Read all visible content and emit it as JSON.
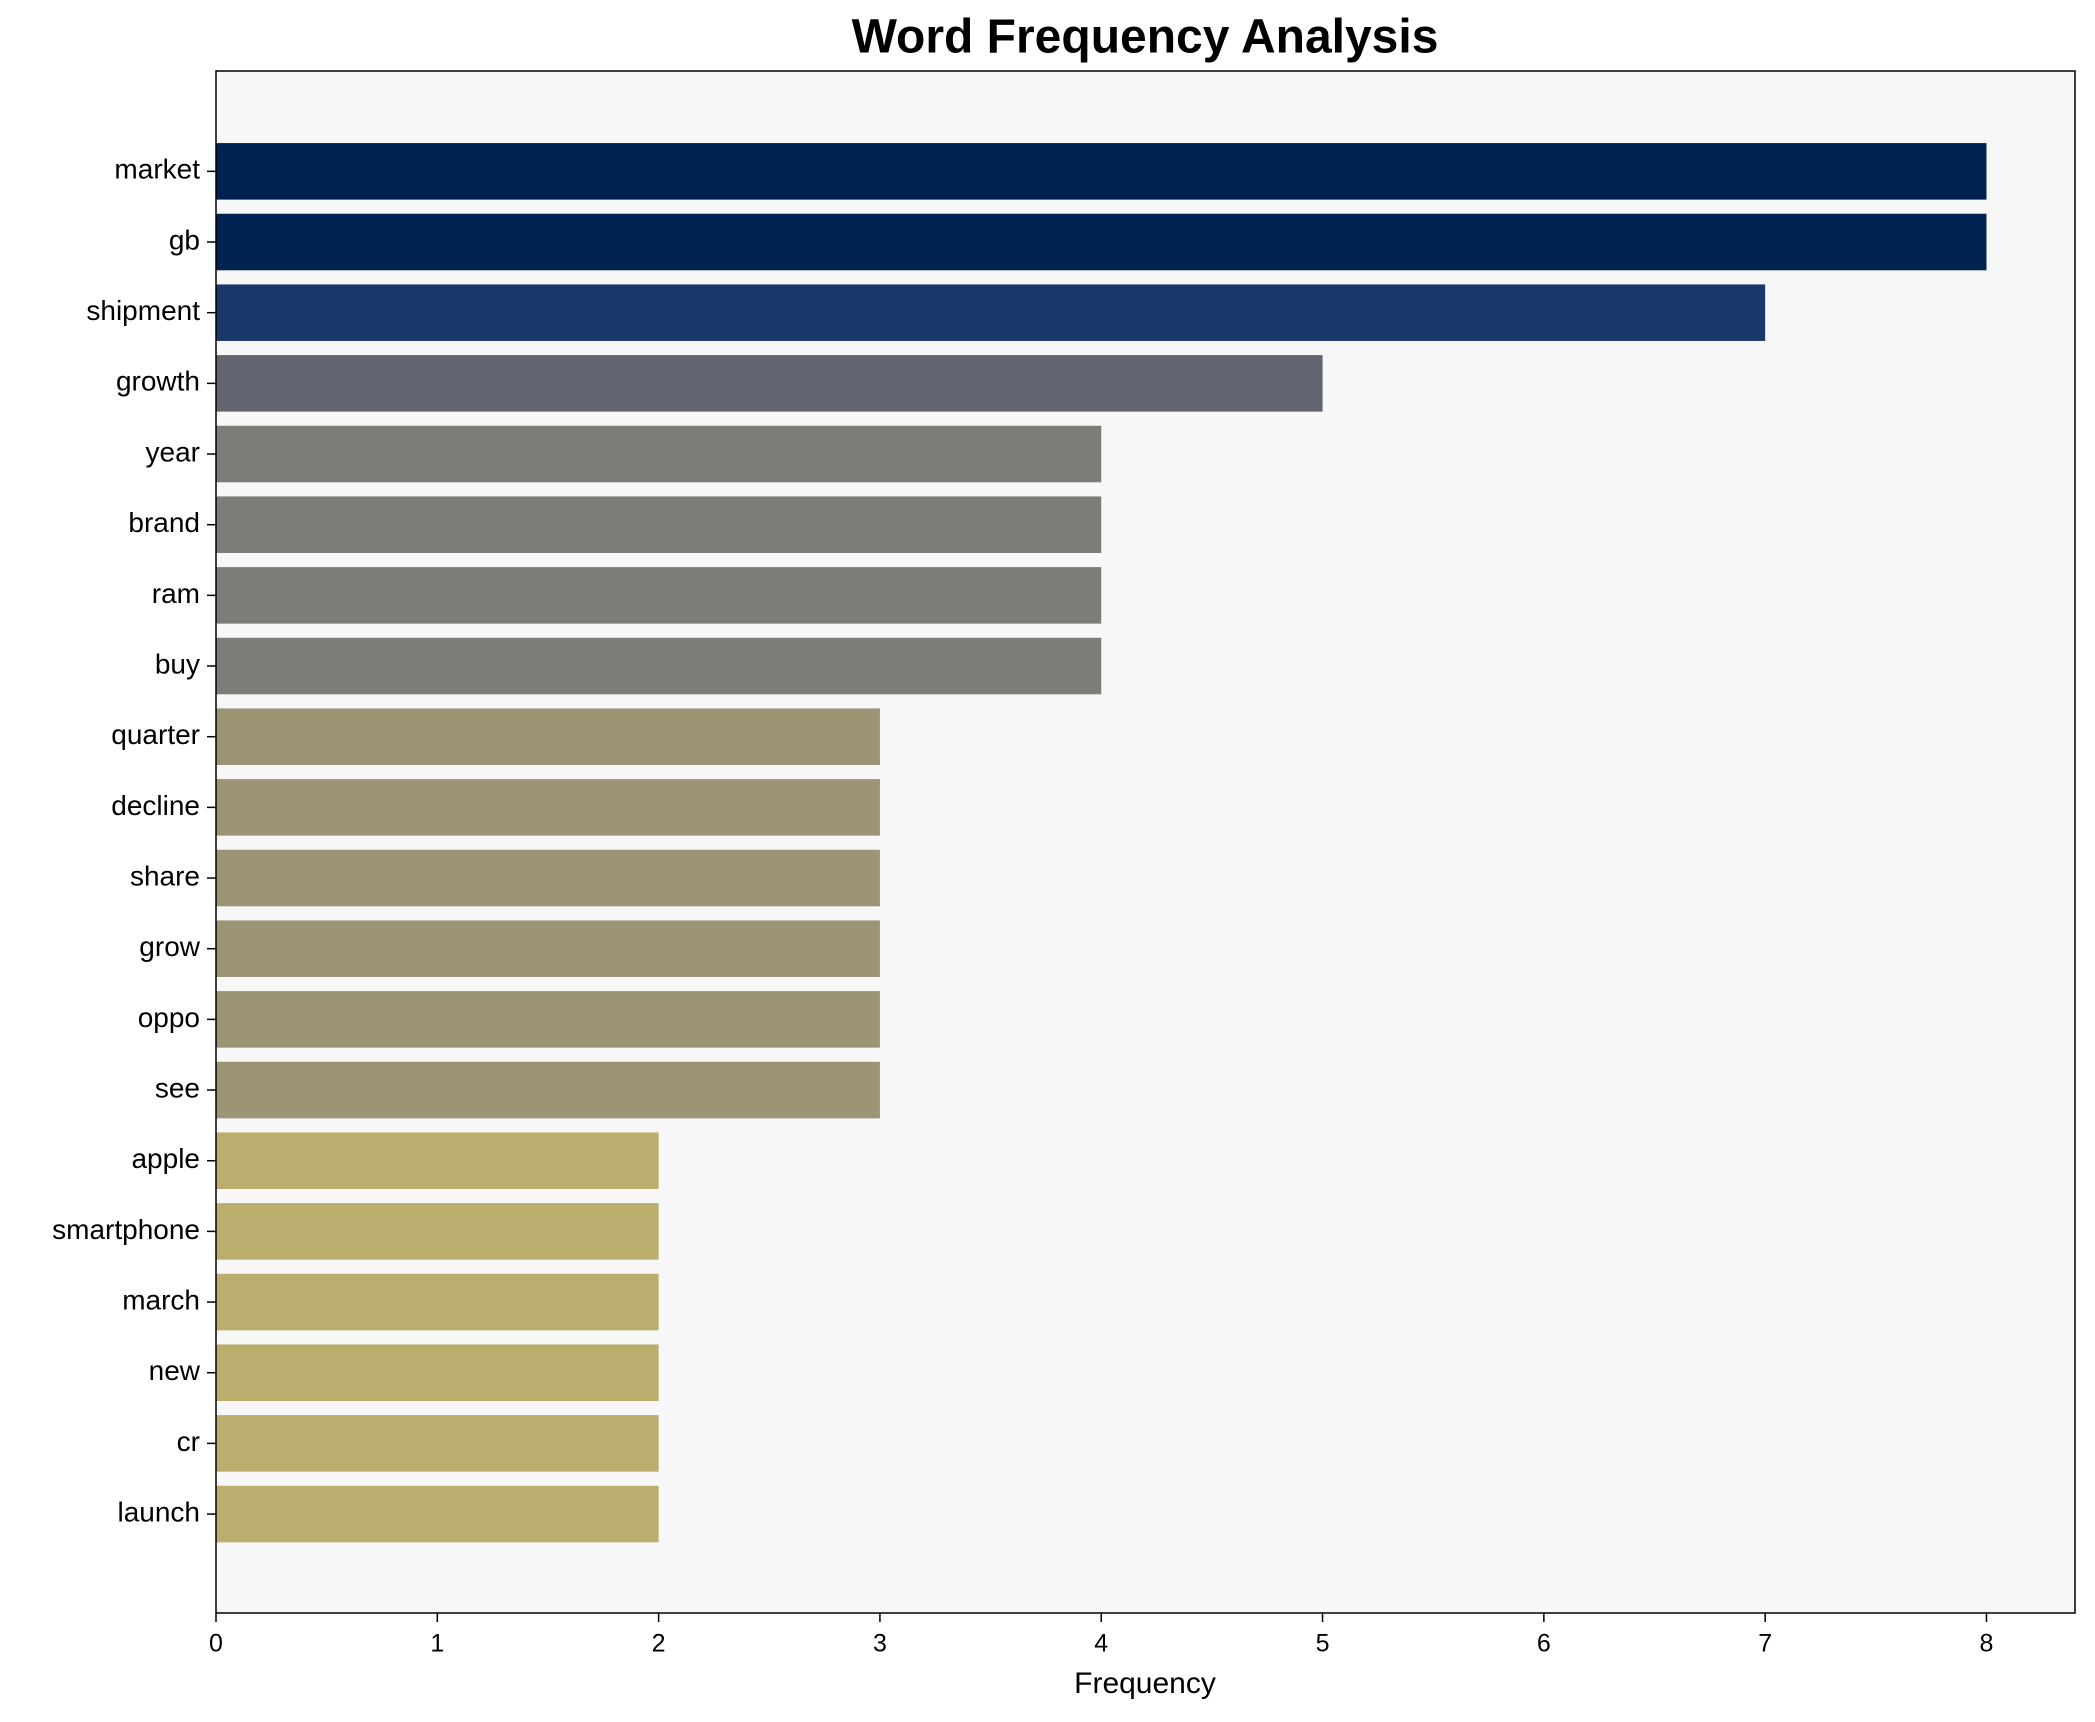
{
  "chart_data": {
    "type": "barh",
    "title": "Word Frequency Analysis",
    "xlabel": "Frequency",
    "categories": [
      "market",
      "gb",
      "shipment",
      "growth",
      "year",
      "brand",
      "ram",
      "buy",
      "quarter",
      "decline",
      "share",
      "grow",
      "oppo",
      "see",
      "apple",
      "smartphone",
      "march",
      "new",
      "cr",
      "launch"
    ],
    "values": [
      8,
      8,
      7,
      5,
      4,
      4,
      4,
      4,
      3,
      3,
      3,
      3,
      3,
      3,
      2,
      2,
      2,
      2,
      2,
      2
    ],
    "colors": [
      "#002251",
      "#002251",
      "#1a366b",
      "#61656f",
      "#7d7c78",
      "#7d7c78",
      "#7d7c78",
      "#7d7c78",
      "#9b9475",
      "#9b9475",
      "#9b9475",
      "#9b9475",
      "#9b9475",
      "#9b9475",
      "#bbad6e",
      "#bbad6e",
      "#bbad6e",
      "#bbad6e",
      "#bbad6e",
      "#bbad6e"
    ],
    "xlim": [
      0,
      8.4
    ],
    "xticks": [
      0,
      1,
      2,
      3,
      4,
      5,
      6,
      7,
      8
    ]
  }
}
